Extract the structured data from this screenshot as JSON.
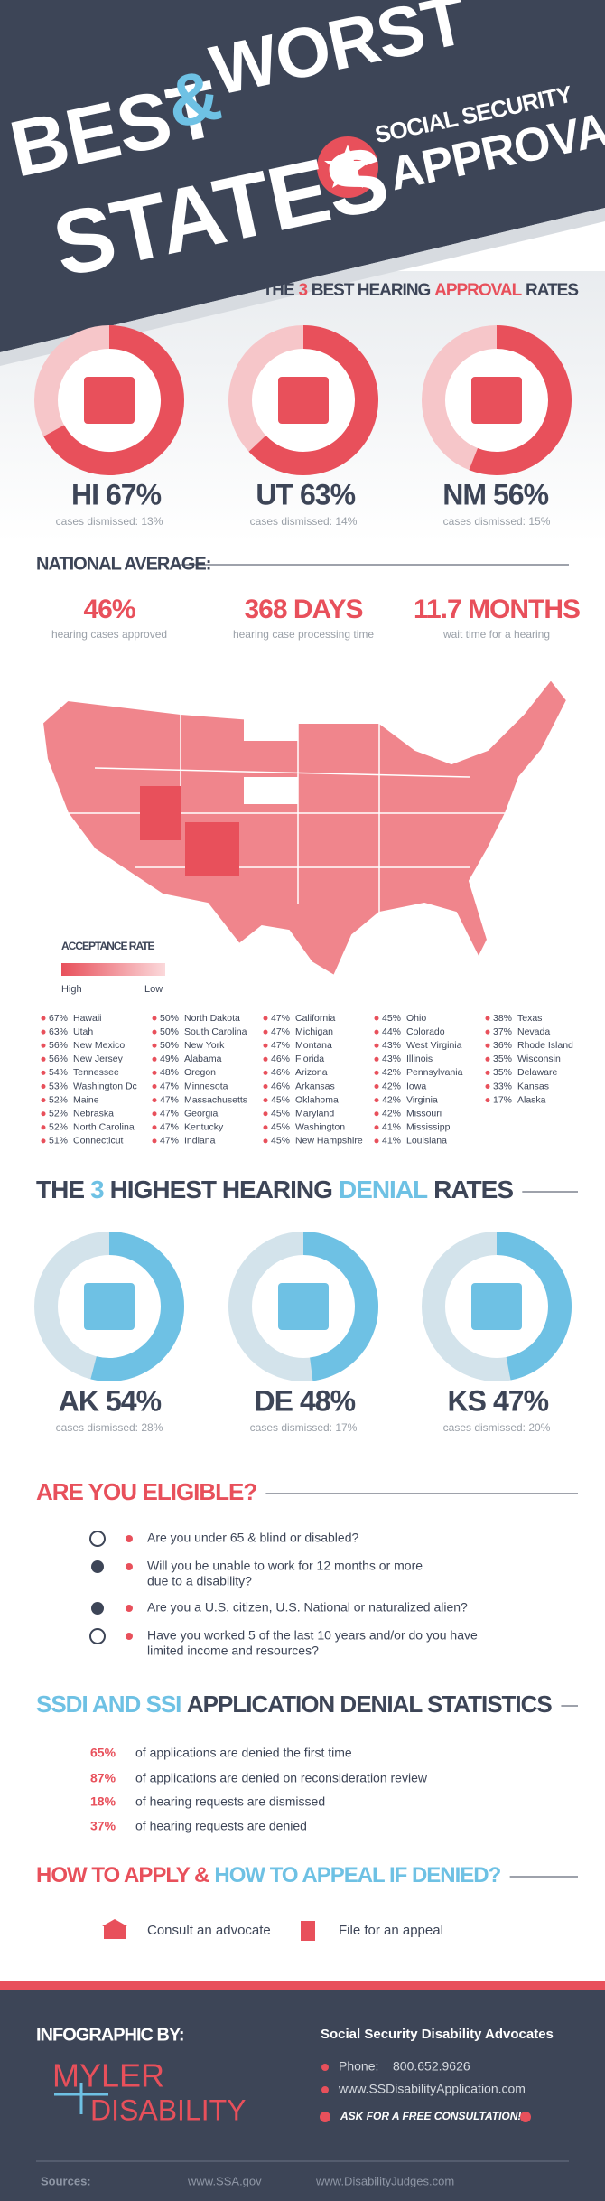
{
  "header": {
    "best": "BEST",
    "ampersand": "&",
    "worst": "WORST",
    "states": "STATES",
    "subtitle_line1": "SOCIAL SECURITY",
    "subtitle_line2": "APPROVAL"
  },
  "best_rates": {
    "title": [
      "THE",
      "3",
      "BEST HEARING",
      "APPROVAL",
      "RATES"
    ],
    "title_colors": [
      "#3d4557",
      "#e8505b",
      "#3d4557",
      "#e8505b",
      "#3d4557"
    ],
    "ring_color": "#e8505b",
    "ring_track_color": "#f6c6c9",
    "items": [
      {
        "state": "HI",
        "value": 67,
        "label": "67%",
        "note": "cases dismissed: 13%"
      },
      {
        "state": "UT",
        "value": 63,
        "label": "63%",
        "note": "cases dismissed: 14%"
      },
      {
        "state": "NM",
        "value": 56,
        "label": "56%",
        "note": "cases dismissed: 15%"
      }
    ]
  },
  "national_average": {
    "title": "NATIONAL AVERAGE:",
    "stats": [
      {
        "value": "46%",
        "label": "hearing cases approved"
      },
      {
        "value": "368 DAYS",
        "label": "hearing case processing time"
      },
      {
        "value": "11.7 MONTHS",
        "label": "wait time for a hearing"
      }
    ]
  },
  "map_legend": {
    "title": "ACCEPTANCE RATE",
    "high": "High",
    "low": "Low"
  },
  "states": [
    {
      "rate": "67%",
      "name": "Hawaii"
    },
    {
      "rate": "63%",
      "name": "Utah"
    },
    {
      "rate": "56%",
      "name": "New Mexico"
    },
    {
      "rate": "56%",
      "name": "New Jersey"
    },
    {
      "rate": "54%",
      "name": "Tennessee"
    },
    {
      "rate": "53%",
      "name": "Washington Dc"
    },
    {
      "rate": "52%",
      "name": "Maine"
    },
    {
      "rate": "52%",
      "name": "Nebraska"
    },
    {
      "rate": "52%",
      "name": "North Carolina"
    },
    {
      "rate": "51%",
      "name": "Connecticut"
    },
    {
      "rate": "50%",
      "name": "North Dakota"
    },
    {
      "rate": "50%",
      "name": "South Carolina"
    },
    {
      "rate": "50%",
      "name": "New York"
    },
    {
      "rate": "49%",
      "name": "Alabama"
    },
    {
      "rate": "48%",
      "name": "Oregon"
    },
    {
      "rate": "47%",
      "name": "Minnesota"
    },
    {
      "rate": "47%",
      "name": "Massachusetts"
    },
    {
      "rate": "47%",
      "name": "Georgia"
    },
    {
      "rate": "47%",
      "name": "Kentucky"
    },
    {
      "rate": "47%",
      "name": "Indiana"
    },
    {
      "rate": "47%",
      "name": "California"
    },
    {
      "rate": "47%",
      "name": "Michigan"
    },
    {
      "rate": "47%",
      "name": "Montana"
    },
    {
      "rate": "46%",
      "name": "Florida"
    },
    {
      "rate": "46%",
      "name": "Arizona"
    },
    {
      "rate": "46%",
      "name": "Arkansas"
    },
    {
      "rate": "45%",
      "name": "Oklahoma"
    },
    {
      "rate": "45%",
      "name": "Maryland"
    },
    {
      "rate": "45%",
      "name": "Washington"
    },
    {
      "rate": "45%",
      "name": "New Hampshire"
    },
    {
      "rate": "45%",
      "name": "Ohio"
    },
    {
      "rate": "44%",
      "name": "Colorado"
    },
    {
      "rate": "43%",
      "name": "West Virginia"
    },
    {
      "rate": "43%",
      "name": "Illinois"
    },
    {
      "rate": "42%",
      "name": "Pennsylvania"
    },
    {
      "rate": "42%",
      "name": "Iowa"
    },
    {
      "rate": "42%",
      "name": "Virginia"
    },
    {
      "rate": "42%",
      "name": "Missouri"
    },
    {
      "rate": "41%",
      "name": "Mississippi"
    },
    {
      "rate": "41%",
      "name": "Louisiana"
    },
    {
      "rate": "38%",
      "name": "Texas"
    },
    {
      "rate": "37%",
      "name": "Nevada"
    },
    {
      "rate": "36%",
      "name": "Rhode Island"
    },
    {
      "rate": "35%",
      "name": "Wisconsin"
    },
    {
      "rate": "35%",
      "name": "Delaware"
    },
    {
      "rate": "33%",
      "name": "Kansas"
    },
    {
      "rate": "17%",
      "name": "Alaska"
    }
  ],
  "denial_rates": {
    "title": [
      "THE",
      "3",
      "HIGHEST HEARING",
      "DENIAL",
      "RATES"
    ],
    "title_colors": [
      "#3d4557",
      "#6ec1e4",
      "#3d4557",
      "#6ec1e4",
      "#3d4557"
    ],
    "ring_color": "#6ec1e4",
    "ring_track_color": "#d3e3eb",
    "items": [
      {
        "state": "AK",
        "value": 54,
        "label": "54%",
        "note": "cases dismissed: 28%"
      },
      {
        "state": "DE",
        "value": 48,
        "label": "48%",
        "note": "cases dismissed: 17%"
      },
      {
        "state": "KS",
        "value": 47,
        "label": "47%",
        "note": "cases dismissed: 20%"
      }
    ]
  },
  "eligibility": {
    "title": [
      "ARE YOU",
      "ELIGIBLE?"
    ],
    "title_colors": [
      "#e8505b",
      "#e8505b"
    ],
    "questions": [
      [
        "Are you under 65 & blind or disabled?"
      ],
      [
        "Will you be unable to work for 12 months or more",
        "due to a disability?"
      ],
      [
        "Are you a U.S. citizen, U.S. National or naturalized alien?"
      ],
      [
        "Have you worked 5 of the last 10 years and/or do you have",
        "limited income and resources?"
      ]
    ]
  },
  "denial_statistics": {
    "title": [
      "SSDI AND SSI",
      "APPLICATION DENIAL STATISTICS"
    ],
    "title_colors": [
      "#6ec1e4",
      "#3d4557"
    ],
    "items": [
      {
        "percent": "65%",
        "text": "of applications are denied the first time"
      },
      {
        "percent": "87%",
        "text": "of applications are denied on reconsideration review"
      },
      {
        "percent": "18%",
        "text": "of hearing requests are dismissed"
      },
      {
        "percent": "37%",
        "text": "of hearing requests are denied"
      }
    ]
  },
  "apply": {
    "title": [
      "HOW TO APPLY &",
      "HOW TO APPEAL IF DENIED?"
    ],
    "title_colors": [
      "#e8505b",
      "#6ec1e4"
    ],
    "items": [
      "Consult an advocate",
      "File for an appeal"
    ]
  },
  "footer": {
    "infographic_by": "INFOGRAPHIC BY:",
    "logo_line1": "MYLER",
    "logo_line2": "DISABILITY",
    "organization": "Social Security Disability Advocates",
    "phone_label": "Phone:",
    "phone": "800.652.9626",
    "website": "www.SSDisabilityApplication.com",
    "cta": "ASK FOR A FREE CONSULTATION!",
    "sources_label": "Sources:",
    "sources": [
      "www.SSA.gov",
      "www.DisabilityJudges.com"
    ]
  }
}
